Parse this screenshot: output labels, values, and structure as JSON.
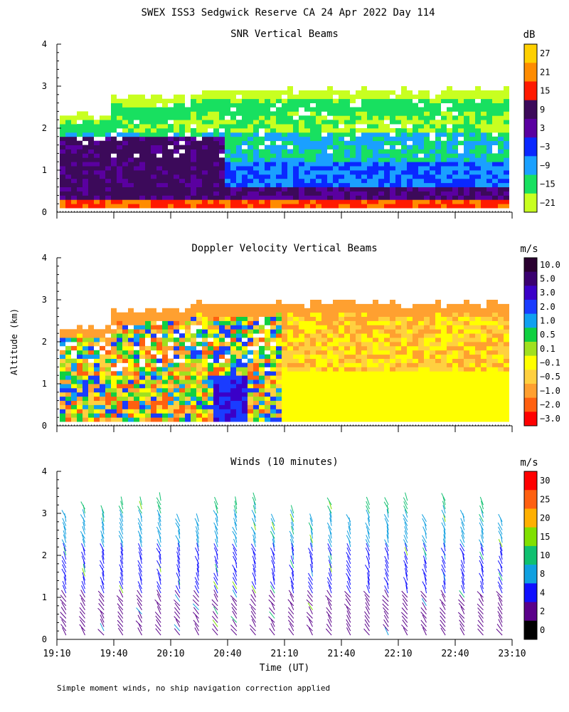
{
  "figure": {
    "title": "SWEX ISS3 Sedgwick Reserve CA  24 Apr 2022 Day 114",
    "ylabel": "Altitude (km)",
    "xlabel": "Time (UT)",
    "x_ticks": [
      "19:10",
      "19:40",
      "20:10",
      "20:40",
      "21:10",
      "21:40",
      "22:10",
      "22:40",
      "23:10"
    ],
    "footer": "Simple moment winds, no ship navigation correction applied"
  },
  "chart_data": [
    {
      "type": "heatmap",
      "title": "SNR Vertical Beams",
      "units": "dB",
      "ylim": [
        0,
        4
      ],
      "y_ticks": [
        "0",
        "1",
        "2",
        "3",
        "4"
      ],
      "xlim_hours": [
        19.1667,
        23.1667
      ],
      "color_levels": [
        "27",
        "21",
        "15",
        "9",
        "3",
        "−3",
        "−9",
        "−15",
        "−21"
      ],
      "colors": [
        "#ffd000",
        "#ff8c00",
        "#ff1a00",
        "#3c0a5a",
        "#5a00a0",
        "#0a28ff",
        "#1aa0ff",
        "#18e060",
        "#c8ff20"
      ],
      "description": "Signal-to-noise ratio for vertical beams; strongest near surface, echo top near 2.8-3 km"
    },
    {
      "type": "heatmap",
      "title": "Doppler Velocity Vertical Beams",
      "units": "m/s",
      "ylim": [
        0,
        4
      ],
      "y_ticks": [
        "0",
        "1",
        "2",
        "3",
        "4"
      ],
      "xlim_hours": [
        19.1667,
        23.1667
      ],
      "color_levels": [
        "10.0",
        "5.0",
        "3.0",
        "2.0",
        "1.0",
        "0.5",
        "0.1",
        "−0.1",
        "−0.5",
        "−1.0",
        "−2.0",
        "−3.0"
      ],
      "colors": [
        "#2a0030",
        "#3a0070",
        "#3a00c8",
        "#1a3cff",
        "#10a0f0",
        "#10d040",
        "#a0e020",
        "#ffff00",
        "#ffd040",
        "#ffa030",
        "#ff6010",
        "#ff0000"
      ],
      "description": "Vertical velocity; mostly slight negative (yellow) after 21:10, mixed positive before 20:30"
    },
    {
      "type": "wind_barbs",
      "title": "Winds (10 minutes)",
      "units": "m/s",
      "ylim": [
        0,
        4
      ],
      "y_ticks": [
        "0",
        "1",
        "2",
        "3",
        "4"
      ],
      "xlim_hours": [
        19.1667,
        23.1667
      ],
      "color_levels": [
        "30",
        "25",
        "20",
        "15",
        "10",
        "8",
        "4",
        "2",
        "0"
      ],
      "colors": [
        "#ff0000",
        "#ff6010",
        "#ffb000",
        "#80e000",
        "#10c070",
        "#10a0e0",
        "#1010ff",
        "#5a008a",
        "#000000"
      ],
      "description": "Wind barb profiles every 10 minutes; light winds below 1 km, 4-10 m/s aloft"
    }
  ]
}
